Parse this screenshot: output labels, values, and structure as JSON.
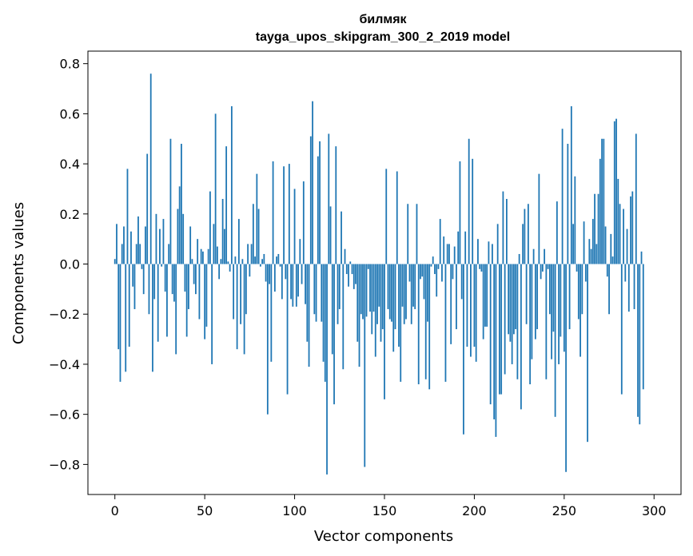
{
  "chart_data": {
    "type": "bar",
    "title": "билмяк",
    "subtitle": "tayga_upos_skipgram_300_2_2019 model",
    "xlabel": "Vector components",
    "ylabel": "Components values",
    "xlim": [
      -15,
      315
    ],
    "ylim": [
      -0.92,
      0.85
    ],
    "xticks": [
      0,
      50,
      100,
      150,
      200,
      250,
      300
    ],
    "xtick_labels": [
      "0",
      "50",
      "100",
      "150",
      "200",
      "250",
      "300"
    ],
    "yticks": [
      -0.8,
      -0.6,
      -0.4,
      -0.2,
      0.0,
      0.2,
      0.4,
      0.6,
      0.8
    ],
    "ytick_labels": [
      "−0.8",
      "−0.6",
      "−0.4",
      "−0.2",
      "0.0",
      "0.2",
      "0.4",
      "0.6",
      "0.8"
    ],
    "bar_color": "#1f77b4",
    "grid": false,
    "values": [
      0.02,
      0.16,
      -0.34,
      -0.47,
      0.08,
      0.15,
      -0.43,
      0.38,
      -0.33,
      0.13,
      -0.09,
      -0.18,
      0.08,
      0.19,
      0.08,
      -0.02,
      -0.12,
      0.15,
      0.44,
      -0.2,
      0.76,
      -0.43,
      -0.14,
      0.2,
      -0.31,
      0.14,
      -0.01,
      0.18,
      -0.11,
      -0.29,
      0.08,
      0.5,
      -0.12,
      -0.15,
      -0.36,
      0.22,
      0.31,
      0.48,
      0.2,
      -0.11,
      -0.29,
      -0.18,
      0.15,
      0.02,
      -0.08,
      -0.12,
      0.1,
      -0.22,
      0.06,
      0.05,
      -0.3,
      -0.25,
      0.06,
      0.29,
      -0.4,
      0.16,
      0.6,
      0.07,
      -0.06,
      0.02,
      0.26,
      0.14,
      0.47,
      0.01,
      -0.03,
      0.63,
      -0.22,
      0.03,
      -0.34,
      0.18,
      -0.24,
      0.02,
      -0.36,
      -0.2,
      0.08,
      -0.05,
      0.08,
      0.24,
      0.03,
      0.36,
      0.22,
      -0.01,
      0.02,
      0.04,
      -0.07,
      -0.6,
      -0.08,
      -0.39,
      0.41,
      -0.11,
      0.03,
      0.04,
      -0.01,
      -0.14,
      0.39,
      -0.06,
      -0.52,
      0.4,
      -0.14,
      -0.17,
      0.3,
      -0.17,
      -0.13,
      0.1,
      -0.08,
      0.33,
      -0.16,
      -0.31,
      -0.41,
      0.51,
      0.65,
      -0.2,
      -0.23,
      0.43,
      0.49,
      -0.23,
      -0.39,
      -0.47,
      -0.84,
      0.52,
      0.23,
      -0.36,
      -0.56,
      0.47,
      -0.24,
      -0.18,
      0.21,
      -0.42,
      0.06,
      -0.04,
      -0.09,
      0.01,
      -0.04,
      -0.1,
      -0.08,
      -0.31,
      -0.41,
      -0.2,
      -0.22,
      -0.81,
      -0.21,
      -0.02,
      -0.19,
      -0.28,
      -0.19,
      -0.37,
      -0.24,
      -0.17,
      -0.31,
      -0.26,
      -0.54,
      0.38,
      -0.18,
      -0.22,
      -0.23,
      -0.35,
      -0.26,
      0.37,
      -0.33,
      -0.47,
      -0.17,
      -0.24,
      -0.22,
      0.24,
      -0.07,
      -0.24,
      -0.17,
      -0.18,
      0.24,
      -0.48,
      -0.06,
      -0.05,
      -0.14,
      -0.46,
      -0.23,
      -0.5,
      -0.01,
      0.03,
      -0.04,
      -0.13,
      -0.02,
      0.18,
      -0.07,
      0.11,
      -0.47,
      0.08,
      0.08,
      -0.32,
      -0.06,
      0.07,
      -0.26,
      0.13,
      0.41,
      -0.14,
      -0.68,
      0.13,
      -0.33,
      0.5,
      -0.37,
      0.42,
      -0.33,
      -0.39,
      0.1,
      -0.02,
      -0.03,
      -0.3,
      -0.25,
      -0.25,
      0.09,
      -0.56,
      0.08,
      -0.62,
      -0.69,
      0.16,
      -0.52,
      -0.52,
      0.29,
      -0.44,
      0.26,
      -0.28,
      -0.31,
      -0.4,
      -0.28,
      -0.26,
      -0.46,
      0.04,
      -0.58,
      0.16,
      0.22,
      -0.24,
      0.24,
      -0.48,
      -0.38,
      0.06,
      -0.3,
      -0.26,
      0.36,
      -0.06,
      -0.03,
      0.06,
      -0.46,
      -0.02,
      -0.2,
      -0.38,
      -0.27,
      -0.61,
      0.25,
      -0.4,
      -0.29,
      0.54,
      -0.35,
      -0.83,
      0.48,
      -0.26,
      0.63,
      0.16,
      0.35,
      -0.03,
      -0.22,
      -0.37,
      -0.2,
      0.17,
      -0.07,
      -0.71,
      0.1,
      0.06,
      0.18,
      0.28,
      0.08,
      0.28,
      0.42,
      0.5,
      0.5,
      0.15,
      -0.05,
      -0.2,
      0.12,
      0.03,
      0.57,
      0.58,
      0.34,
      0.24,
      -0.52,
      0.22,
      -0.07,
      0.14,
      -0.19,
      0.27,
      0.29,
      -0.18,
      0.52,
      -0.61,
      -0.64,
      0.05,
      -0.5
    ]
  }
}
